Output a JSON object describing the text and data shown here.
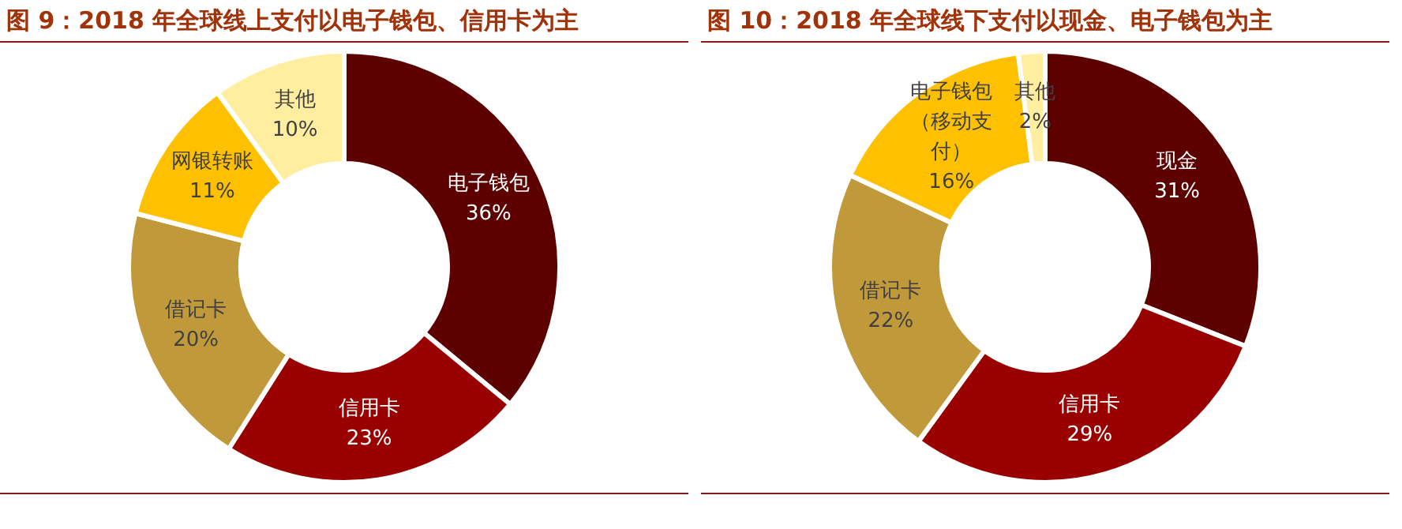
{
  "chart_data": [
    {
      "type": "donut",
      "title": "图 9：2018 年全球线上支付以电子钱包、信用卡为主",
      "categories": [
        "电子钱包",
        "信用卡",
        "借记卡",
        "网银转账",
        "其他"
      ],
      "values": [
        36,
        23,
        20,
        11,
        10
      ],
      "value_labels": [
        "36%",
        "23%",
        "20%",
        "11%",
        "10%"
      ],
      "colors": [
        "#5c0000",
        "#990000",
        "#c09a3a",
        "#ffc000",
        "#ffeea0"
      ]
    },
    {
      "type": "donut",
      "title": "图 10：2018 年全球线下支付以现金、电子钱包为主",
      "categories": [
        "现金",
        "信用卡",
        "借记卡",
        "电子钱包（移动支付）",
        "其他"
      ],
      "values": [
        31,
        29,
        22,
        16,
        2
      ],
      "value_labels": [
        "31%",
        "29%",
        "22%",
        "16%",
        "2%"
      ],
      "colors": [
        "#5c0000",
        "#990000",
        "#c09a3a",
        "#ffc000",
        "#ffeea0"
      ]
    }
  ]
}
